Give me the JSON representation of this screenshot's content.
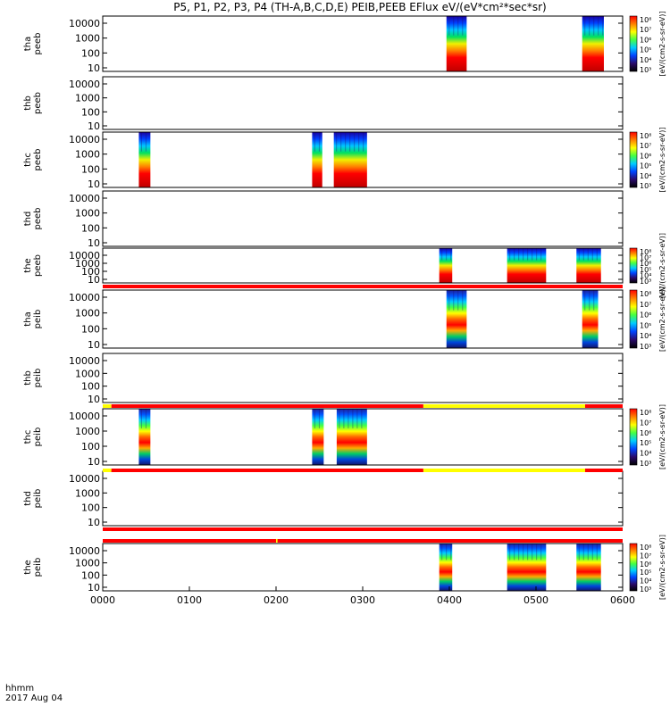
{
  "chart_data": {
    "type": "heatmap",
    "title": "P5, P1, P2, P3, P4 (TH-A,B,C,D,E) PEIB,PEEB EFlux eV/(eV*cm²*sec*sr)",
    "x_axis": {
      "label_line1": "hhmm",
      "label_line2": "2017 Aug 04",
      "range": [
        "00:00",
        "06:00"
      ],
      "ticks": [
        "0000",
        "0100",
        "0200",
        "0300",
        "0400",
        "0500",
        "0600"
      ]
    },
    "y_ticks": [
      "10",
      "100",
      "1000",
      "10000"
    ],
    "colorbar": {
      "title": "eV/(cm2-s-sr-eV)",
      "ticks": [
        "10³",
        "10⁴",
        "10⁵",
        "10⁶",
        "10⁷",
        "10⁸"
      ],
      "unit_label": "[eV/(cm2-s-sr-eV)]"
    },
    "panels": [
      {
        "label": [
          "tha",
          "peeb"
        ],
        "colorbar": true,
        "mode": "electron",
        "intervals": [
          [
            "03:58",
            "04:12"
          ],
          [
            "05:32",
            "05:47"
          ]
        ]
      },
      {
        "label": [
          "thb",
          "peeb"
        ],
        "colorbar": false,
        "mode": "electron",
        "intervals": []
      },
      {
        "label": [
          "thc",
          "peeb"
        ],
        "colorbar": true,
        "mode": "electron",
        "intervals": [
          [
            "00:25",
            "00:33"
          ],
          [
            "02:25",
            "02:32"
          ],
          [
            "02:40",
            "03:03"
          ]
        ]
      },
      {
        "label": [
          "thd",
          "peeb"
        ],
        "colorbar": false,
        "mode": "electron",
        "intervals": []
      },
      {
        "label": [
          "the",
          "peeb"
        ],
        "colorbar": true,
        "mode": "electron",
        "intervals": [
          [
            "03:53",
            "04:02"
          ],
          [
            "04:40",
            "05:07"
          ],
          [
            "05:28",
            "05:45"
          ]
        ]
      },
      {
        "label": [
          "tha",
          "peib"
        ],
        "colorbar": true,
        "mode": "ion",
        "intervals": [
          [
            "03:58",
            "04:12"
          ],
          [
            "05:32",
            "05:43"
          ]
        ]
      },
      {
        "label": [
          "thb",
          "peib"
        ],
        "colorbar": false,
        "mode": "ion",
        "intervals": []
      },
      {
        "label": [
          "thc",
          "peib"
        ],
        "colorbar": true,
        "mode": "ion",
        "intervals": [
          [
            "00:25",
            "00:33"
          ],
          [
            "02:25",
            "02:33"
          ],
          [
            "02:42",
            "03:03"
          ]
        ]
      },
      {
        "label": [
          "thd",
          "peib"
        ],
        "colorbar": false,
        "mode": "ion",
        "intervals": []
      },
      {
        "label": [
          "the",
          "peib"
        ],
        "colorbar": true,
        "mode": "ion",
        "intervals": [
          [
            "03:53",
            "04:02"
          ],
          [
            "04:40",
            "05:07"
          ],
          [
            "05:28",
            "05:45"
          ]
        ]
      }
    ],
    "mode_bars": [
      {
        "after_panel": 5,
        "segments": [
          [
            "00:00",
            "06:00",
            "red"
          ]
        ]
      },
      {
        "after_panel": 6,
        "segments": [
          [
            "00:00",
            "00:06",
            "yellow"
          ],
          [
            "00:06",
            "03:42",
            "red"
          ],
          [
            "03:42",
            "05:34",
            "yellow"
          ],
          [
            "05:34",
            "06:00",
            "red"
          ]
        ]
      },
      {
        "after_panel": 7,
        "segments": [
          [
            "00:00",
            "00:06",
            "yellow"
          ],
          [
            "00:06",
            "03:42",
            "red"
          ],
          [
            "03:42",
            "05:34",
            "yellow"
          ],
          [
            "05:34",
            "06:00",
            "red"
          ]
        ]
      },
      {
        "after_panel": 8,
        "segments": [
          [
            "00:00",
            "06:00",
            "red"
          ]
        ]
      },
      {
        "after_panel": 9,
        "segments": [
          [
            "00:00",
            "02:00",
            "red"
          ],
          [
            "02:00",
            "02:01",
            "yellow"
          ],
          [
            "02:01",
            "06:00",
            "red"
          ]
        ]
      }
    ],
    "grid": false,
    "legend": "none"
  }
}
